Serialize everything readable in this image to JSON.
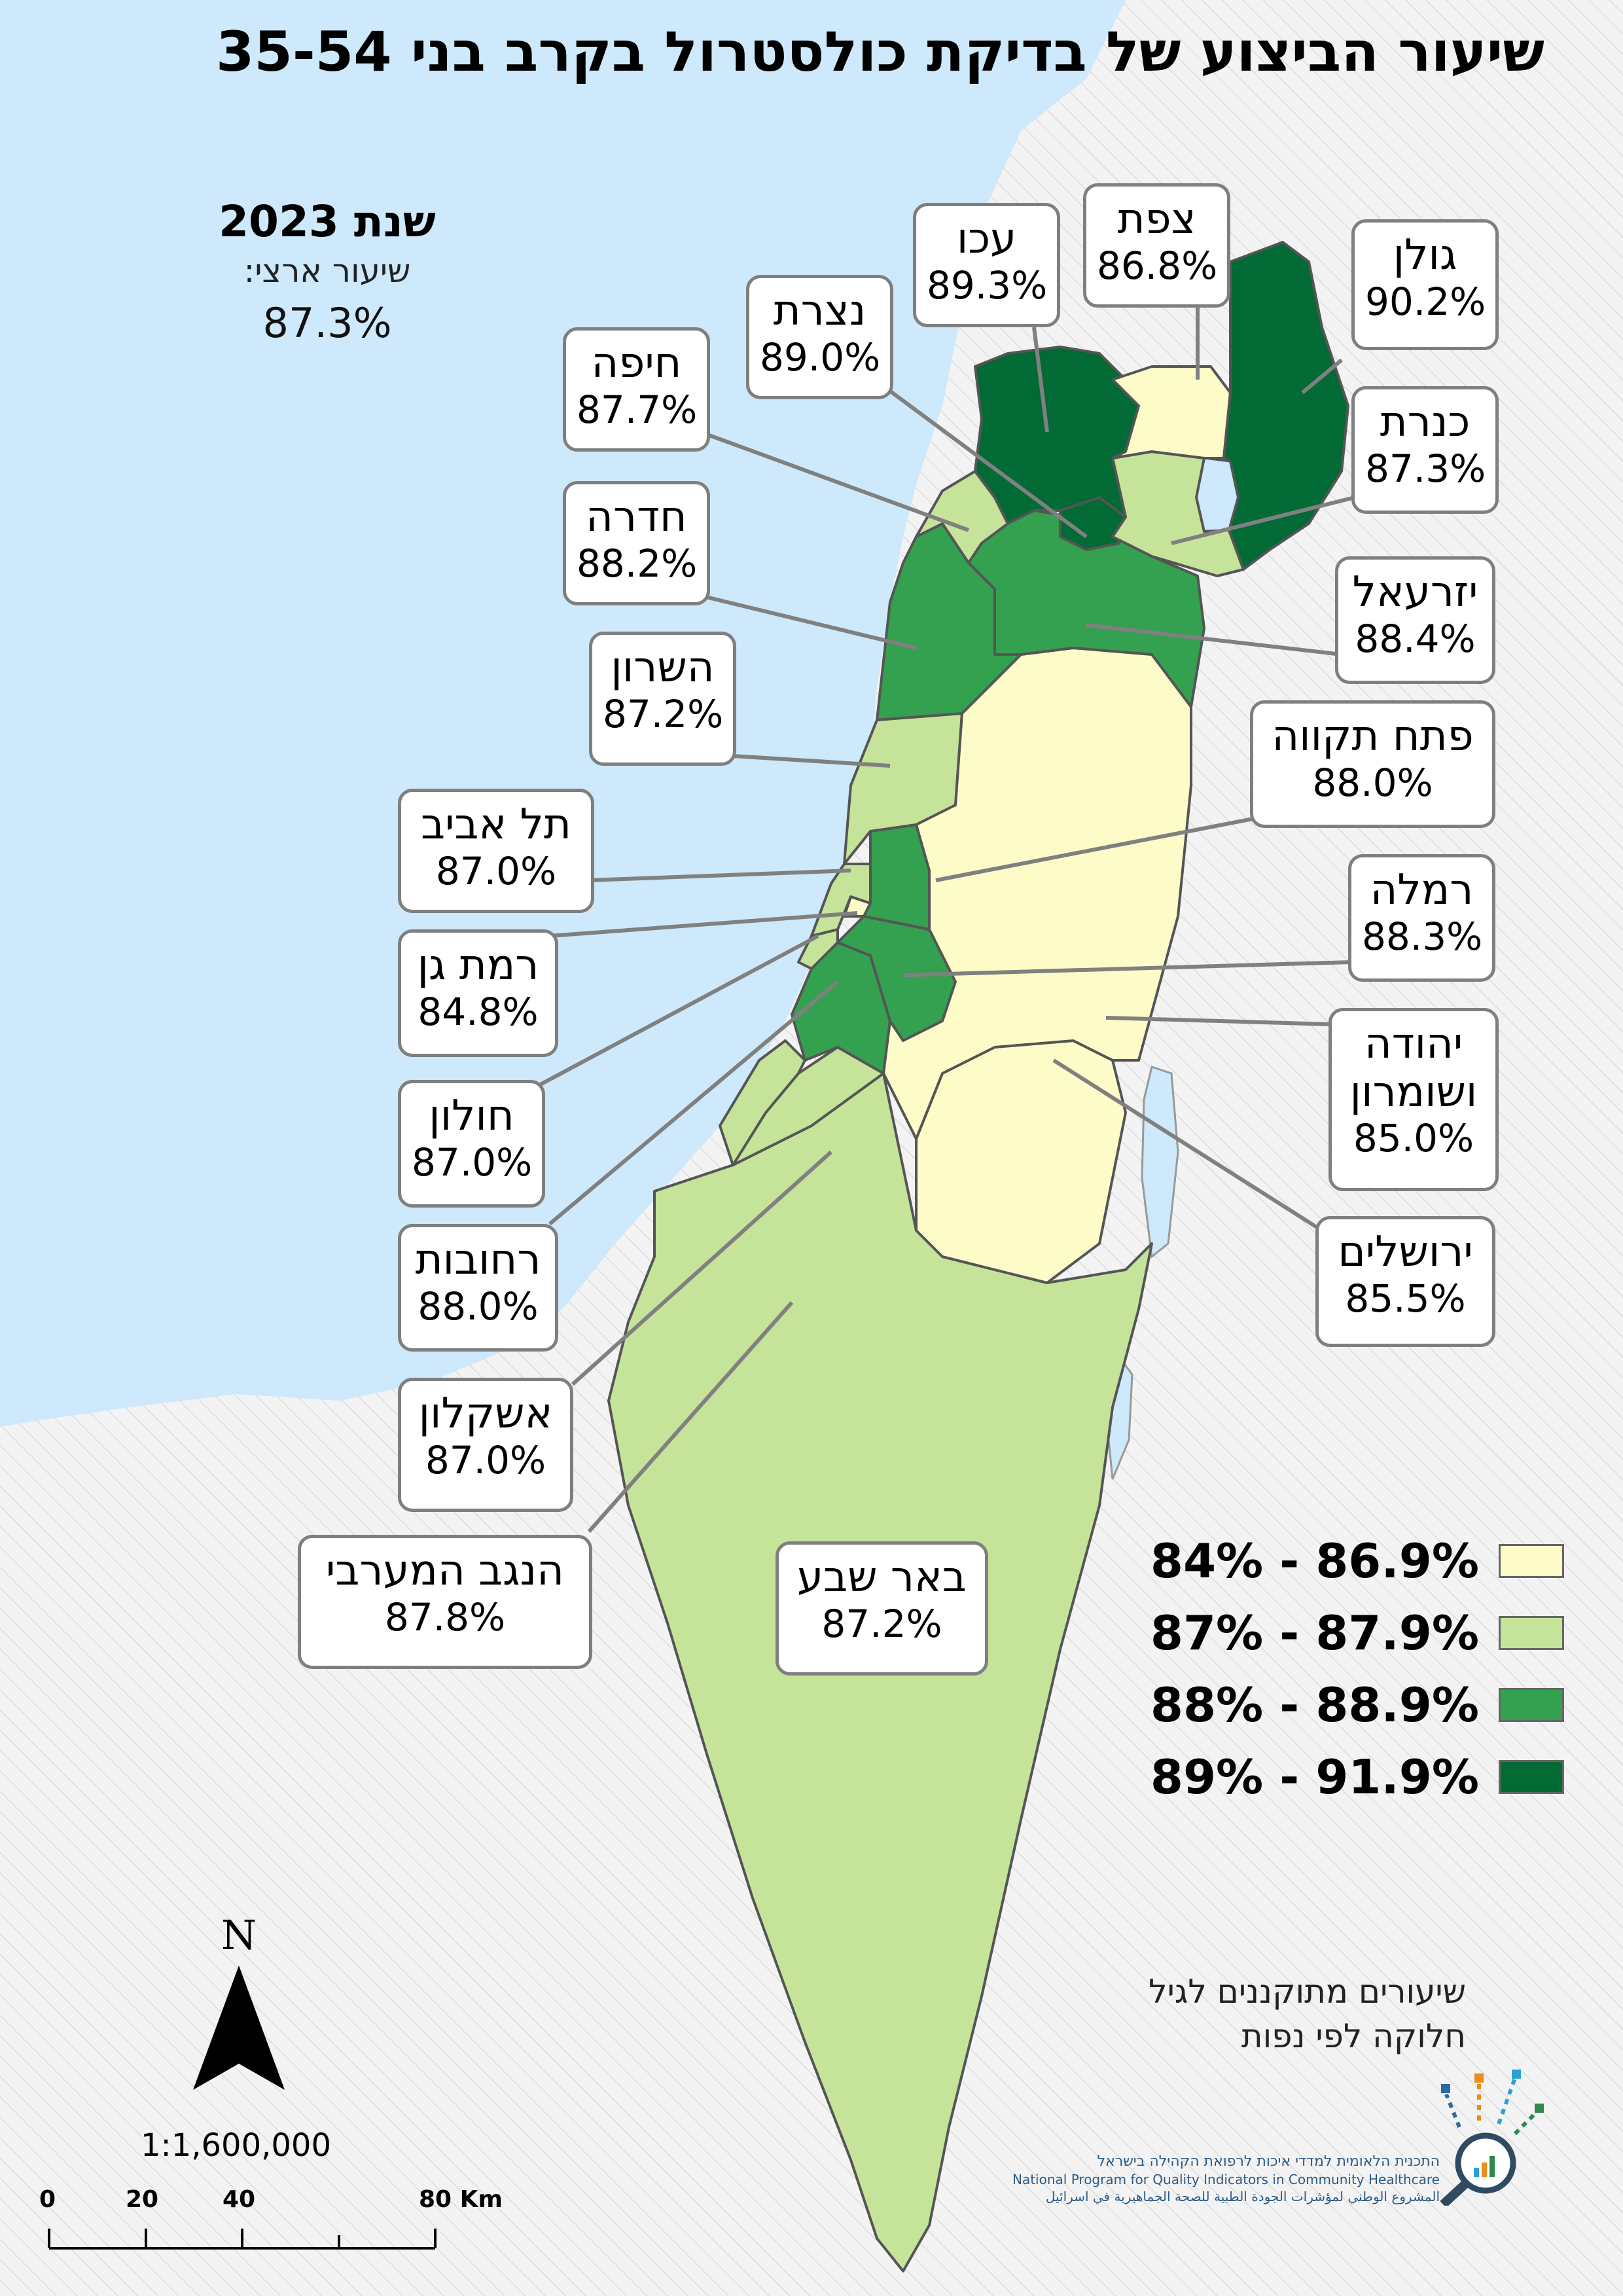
{
  "title": "שיעור הביצוע של בדיקת כולסטרול בקרב בני 35-54",
  "year_block": {
    "year_title": "שנת 2023",
    "national_label": "שיעור ארצי:",
    "national_value": "87.3%"
  },
  "legend": {
    "items": [
      {
        "label": "84% - 86.9%",
        "color": "#fdfcc8"
      },
      {
        "label": "87% - 87.9%",
        "color": "#c5e49a"
      },
      {
        "label": "88% - 88.9%",
        "color": "#33a14f"
      },
      {
        "label": "89% - 91.9%",
        "color": "#026a34"
      }
    ]
  },
  "colors": {
    "sea": "#cde9fb",
    "outside": "#f2f2f2",
    "border": "#555555",
    "leader": "#808080"
  },
  "regions": [
    {
      "id": "golan",
      "name": "גולן",
      "value": "90.2%",
      "class": 4
    },
    {
      "id": "safed",
      "name": "צפת",
      "value": "86.8%",
      "class": 1
    },
    {
      "id": "acre",
      "name": "עכו",
      "value": "89.3%",
      "class": 4
    },
    {
      "id": "nazareth",
      "name": "נצרת",
      "value": "89.0%",
      "class": 4
    },
    {
      "id": "haifa",
      "name": "חיפה",
      "value": "87.7%",
      "class": 2
    },
    {
      "id": "kinneret",
      "name": "כנרת",
      "value": "87.3%",
      "class": 2
    },
    {
      "id": "hadera",
      "name": "חדרה",
      "value": "88.2%",
      "class": 3
    },
    {
      "id": "jezreel",
      "name": "יזרעאל",
      "value": "88.4%",
      "class": 3
    },
    {
      "id": "sharon",
      "name": "השרון",
      "value": "87.2%",
      "class": 2
    },
    {
      "id": "petah-tikva",
      "name": "פתח תקווה",
      "value": "88.0%",
      "class": 3
    },
    {
      "id": "tel-aviv",
      "name": "תל אביב",
      "value": "87.0%",
      "class": 2
    },
    {
      "id": "ramla",
      "name": "רמלה",
      "value": "88.3%",
      "class": 3
    },
    {
      "id": "ramat-gan",
      "name": "רמת גן",
      "value": "84.8%",
      "class": 1
    },
    {
      "id": "judea-samaria",
      "name": "יהודה ושומרון",
      "value": "85.0%",
      "class": 1
    },
    {
      "id": "holon",
      "name": "חולון",
      "value": "87.0%",
      "class": 2
    },
    {
      "id": "jerusalem",
      "name": "ירושלים",
      "value": "85.5%",
      "class": 1
    },
    {
      "id": "rehovot",
      "name": "רחובות",
      "value": "88.0%",
      "class": 3
    },
    {
      "id": "ashkelon",
      "name": "אשקלון",
      "value": "87.0%",
      "class": 2
    },
    {
      "id": "western-negev",
      "name": "הנגב המערבי",
      "value": "87.8%",
      "class": 2
    },
    {
      "id": "beer-sheva",
      "name": "באר שבע",
      "value": "87.2%",
      "class": 2
    }
  ],
  "note": {
    "line1": "שיעורים מתוקננים לגיל",
    "line2": "חלוקה לפי נפות"
  },
  "north": {
    "letter": "N"
  },
  "scale": {
    "ratio": "1:1,600,000",
    "ticks": [
      "0",
      "20",
      "40",
      "80 Km"
    ]
  },
  "logo": {
    "hebrew": "התכנית הלאומית למדדי איכות לרפואת הקהילה בישראל",
    "english": "National Program for Quality Indicators in Community Healthcare",
    "arabic": "المشروع الوطني لمؤشرات الجودة الطبية للصحة الجماهيرية في اسرائيل"
  }
}
